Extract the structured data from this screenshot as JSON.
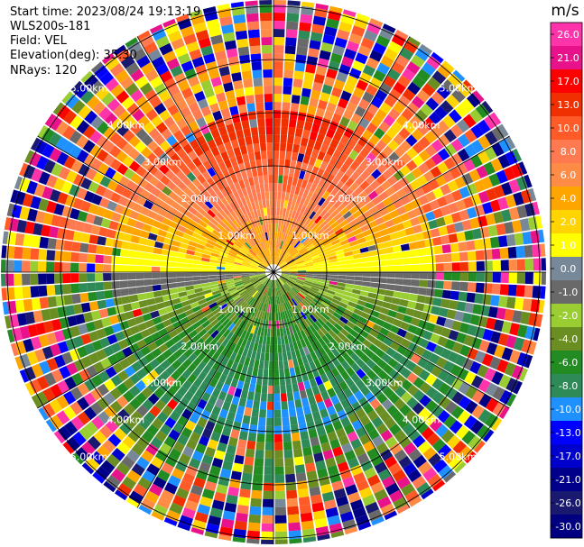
{
  "header": {
    "start_time": "Start time: 2023/08/24 19:13:19",
    "instrument": "WLS200s-181",
    "field": "Field: VEL",
    "elevation": "Elevation(deg): 35.30",
    "nrays": "NRays: 120"
  },
  "colorbar": {
    "unit": "m/s",
    "ticks": [
      "26.0",
      "21.0",
      "17.0",
      "13.0",
      "10.0",
      "8.0",
      "6.0",
      "4.0",
      "2.0",
      "1.0",
      "0.0",
      "-1.0",
      "-2.0",
      "-4.0",
      "-6.0",
      "-8.0",
      "-10.0",
      "-13.0",
      "-17.0",
      "-21.0",
      "-26.0",
      "-30.0"
    ],
    "colors": [
      "#ff33aa",
      "#e8128a",
      "#ff0000",
      "#f03000",
      "#ff5a28",
      "#ff7a50",
      "#ff8c46",
      "#ffa500",
      "#ffd400",
      "#ffff00",
      "#778899",
      "#696969",
      "#9acd32",
      "#6b8e23",
      "#228b22",
      "#2e8b57",
      "#1e90ff",
      "#0000ff",
      "#0000cd",
      "#00008b",
      "#191970",
      "#000080"
    ]
  },
  "chart_data": {
    "type": "heatmap",
    "projection": "polar PPI",
    "field": "VEL",
    "unit": "m/s",
    "nrays": 120,
    "range_ring_labels": [
      "1.00km",
      "2.00km",
      "3.00km",
      "4.00km",
      "5.00km"
    ],
    "range_rings_km": [
      1,
      2,
      3,
      4,
      5
    ],
    "vmin": -30.0,
    "vmax": 26.0,
    "pattern": "coherent near-field: positive velocities (orange/yellow) in north half, negative (green) in south half, near-zero (grey) along east-west axis; noisy far-field beyond ~3 km"
  }
}
